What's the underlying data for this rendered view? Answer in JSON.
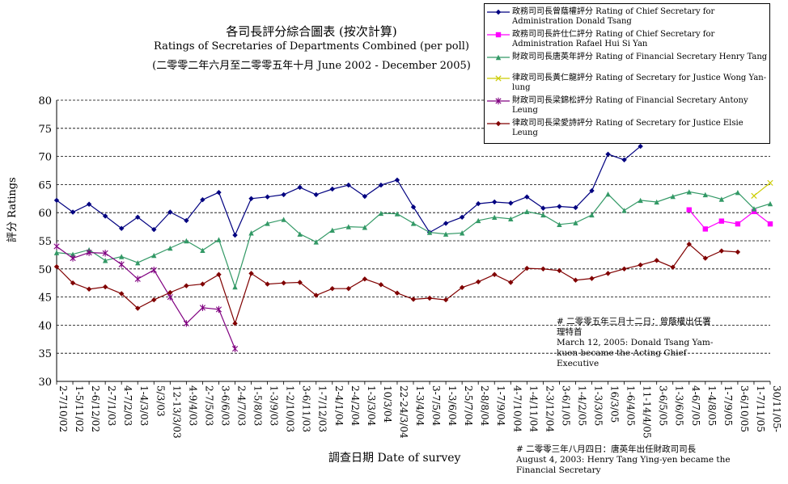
{
  "titles": {
    "line1": "各司長評分綜合圖表 (按次計算)",
    "line2": "Ratings of Secretaries of Departments Combined (per poll)",
    "line3": "(二零零二年六月至二零零五年十月 June 2002 - December 2005)"
  },
  "notes": {
    "note1": "# 二零零五年三月十二日：曾蔭權出任署理特首",
    "note1_en": "March 12, 2005: Donald  Tsang Yam-kuen became the Acting Chief Executive",
    "note2": "# 二零零三年八月四日：唐英年出任財政司司長",
    "note2_en": "August 4, 2003: Henry Tang Ying-yen became the Financial Secretary"
  },
  "chart_data": {
    "type": "line",
    "title": "各司長評分綜合圖表 (按次計算) Ratings of Secretaries of Departments Combined (per poll)",
    "xlabel": "調查日期 Date of survey",
    "ylabel": "評分 Ratings",
    "ylim": [
      30,
      80
    ],
    "yticks": [
      30,
      35,
      40,
      45,
      50,
      55,
      60,
      65,
      70,
      75,
      80
    ],
    "grid": "horizontal dashed",
    "legend_position": "top-right",
    "categories": [
      "2-7/10/02",
      "1-5/11/02",
      "2-6/12/02",
      "2-7/1/03",
      "4-7/2/03",
      "1-4/3/03",
      "5/3/03",
      "12-13/3/03",
      "4-9/4/03",
      "2-7/5/03",
      "3-6/6/03",
      "2-4/7/03",
      "1-5/8/03",
      "1-3/9/03",
      "1-2/10/03",
      "3-6/11/03",
      "1-7/12/03",
      "2-4/1/04",
      "2-4/2/04",
      "1-3/3/04",
      "10/3/04",
      "22-24/3/04",
      "1-3/4/04",
      "3-7/5/04",
      "1-3/6/04",
      "2-5/7/04",
      "2-8/8/04",
      "1-7/9/04",
      "4-7/10/04",
      "1-4/11/04",
      "2-3/12/04",
      "3-6/1/05",
      "1-4/2/05",
      "1-3/3/05",
      "16/3/05",
      "1-6/4/05",
      "11-14/4/05",
      "3-6/5/05",
      "1-3/6/05",
      "4-6/7/05",
      "1-4/8/05",
      "1-7/9/05",
      "3-6/10/05",
      "1-7/11/05",
      "30/11/05-"
    ],
    "series": [
      {
        "name": "政務司司長曾蔭權評分 Rating of Chief Secretary for Administration Donald  Tsang",
        "color": "#000080",
        "marker": "diamond",
        "values": [
          62.2,
          60.1,
          61.5,
          59.4,
          57.2,
          59.2,
          57.0,
          60.1,
          58.6,
          62.3,
          63.6,
          56.0,
          62.5,
          62.8,
          63.2,
          64.5,
          63.2,
          64.2,
          64.9,
          62.9,
          64.9,
          65.8,
          61.0,
          56.5,
          58.1,
          59.2,
          61.6,
          61.9,
          61.7,
          62.8,
          60.8,
          61.1,
          60.9,
          63.9,
          70.4,
          69.4,
          71.8,
          null,
          null,
          null,
          null,
          null,
          null,
          null,
          null
        ]
      },
      {
        "name": "政務司司長許仕仁評分 Rating of Chief Secretary for Administration Rafael Hui Si Yan",
        "color": "#ff00ff",
        "marker": "square",
        "values": [
          null,
          null,
          null,
          null,
          null,
          null,
          null,
          null,
          null,
          null,
          null,
          null,
          null,
          null,
          null,
          null,
          null,
          null,
          null,
          null,
          null,
          null,
          null,
          null,
          null,
          null,
          null,
          null,
          null,
          null,
          null,
          null,
          null,
          null,
          null,
          null,
          null,
          null,
          null,
          60.5,
          57.1,
          58.5,
          58.0,
          60.2,
          58.0
        ]
      },
      {
        "name": "財政司司長唐英年評分 Rating of Financial Secretary Henry Tang",
        "color": "#339966",
        "marker": "triangle",
        "values": [
          52.9,
          52.6,
          53.4,
          51.5,
          52.2,
          51.1,
          52.4,
          53.7,
          55.0,
          53.3,
          55.2,
          46.8,
          56.4,
          58.1,
          58.8,
          56.2,
          54.8,
          56.9,
          57.5,
          57.4,
          59.9,
          59.8,
          58.1,
          56.5,
          56.2,
          56.4,
          58.6,
          59.2,
          58.9,
          60.2,
          59.6,
          57.9,
          58.2,
          59.6,
          63.3,
          60.4,
          62.2,
          61.9,
          62.9,
          63.7,
          63.2,
          62.4,
          63.6,
          60.7,
          61.6
        ]
      },
      {
        "name": "律政司司長黃仁龍評分 Rating of Secretary for Justice Wong Yan-lung",
        "color": "#cccc00",
        "marker": "cross",
        "values": [
          null,
          null,
          null,
          null,
          null,
          null,
          null,
          null,
          null,
          null,
          null,
          null,
          null,
          null,
          null,
          null,
          null,
          null,
          null,
          null,
          null,
          null,
          null,
          null,
          null,
          null,
          null,
          null,
          null,
          null,
          null,
          null,
          null,
          null,
          null,
          null,
          null,
          null,
          null,
          null,
          null,
          null,
          null,
          63.0,
          65.3
        ]
      },
      {
        "name": "財政司司長梁錦松評分 Rating of Financial Secretary Antony Leung",
        "color": "#800080",
        "marker": "star",
        "values": [
          54.0,
          51.9,
          52.9,
          52.8,
          50.8,
          48.2,
          49.8,
          45.0,
          40.3,
          43.1,
          42.8,
          35.8,
          null,
          null,
          null,
          null,
          null,
          null,
          null,
          null,
          null,
          null,
          null,
          null,
          null,
          null,
          null,
          null,
          null,
          null,
          null,
          null,
          null,
          null,
          null,
          null,
          null,
          null,
          null,
          null,
          null,
          null,
          null,
          null,
          null
        ]
      },
      {
        "name": "律政司司長梁愛詩評分 Rating of Secretary for Justice Elsie Leung",
        "color": "#800000",
        "marker": "diamond",
        "values": [
          50.4,
          47.5,
          46.4,
          46.8,
          45.6,
          43.0,
          44.5,
          45.8,
          47.0,
          47.3,
          49.0,
          40.3,
          49.2,
          47.3,
          47.5,
          47.6,
          45.3,
          46.5,
          46.5,
          48.2,
          47.2,
          45.7,
          44.6,
          44.8,
          44.5,
          46.7,
          47.7,
          49.0,
          47.6,
          50.1,
          50.0,
          49.7,
          48.0,
          48.3,
          49.2,
          50.0,
          50.7,
          51.5,
          50.3,
          54.4,
          51.9,
          53.2,
          53.0,
          null,
          null
        ]
      }
    ]
  }
}
